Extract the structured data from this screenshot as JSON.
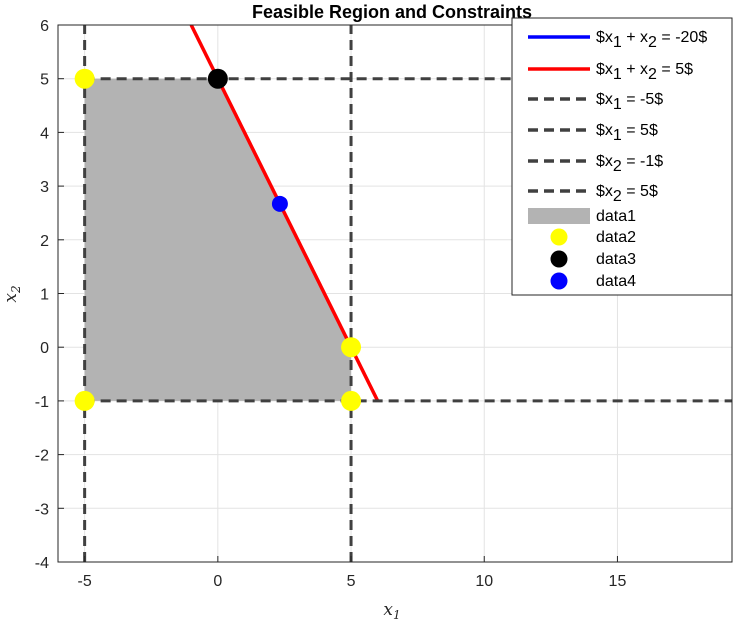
{
  "chart_data": {
    "type": "line",
    "title": "Feasible Region and Constraints",
    "xlabel": "x1",
    "ylabel": "x2",
    "xlim": [
      -6,
      19.3
    ],
    "ylim": [
      -4,
      6
    ],
    "xticks": [
      -5,
      0,
      5,
      10,
      15
    ],
    "yticks": [
      -4,
      -3,
      -2,
      -1,
      0,
      1,
      2,
      3,
      4,
      5,
      6
    ],
    "grid": true,
    "legend_position": "top-right",
    "colors": {
      "blue": "#0000ff",
      "red": "#ff0000",
      "dash": "#404040",
      "fill": "#b3b3b3",
      "yellow": "#ffff00",
      "black": "#000000"
    },
    "lines": [
      {
        "name": "$x_1 + x_2 = -20$",
        "style": "solid",
        "color": "#0000ff",
        "points": []
      },
      {
        "name": "$x_1 + x_2 = 5$",
        "style": "solid",
        "color": "#ff0000",
        "points": [
          [
            -1,
            6
          ],
          [
            6,
            -1
          ]
        ]
      },
      {
        "name": "$x_1 = -5$",
        "style": "dashed",
        "color": "#404040",
        "points": [
          [
            -5,
            -4
          ],
          [
            -5,
            6
          ]
        ]
      },
      {
        "name": "$x_1 = 5$",
        "style": "dashed",
        "color": "#404040",
        "points": [
          [
            5,
            -4
          ],
          [
            5,
            6
          ]
        ]
      },
      {
        "name": "$x_2 = -1$",
        "style": "dashed",
        "color": "#404040",
        "points": [
          [
            -5,
            -1
          ],
          [
            19.3,
            -1
          ]
        ]
      },
      {
        "name": "$x_2 = 5$",
        "style": "dashed",
        "color": "#404040",
        "points": [
          [
            -5,
            5
          ],
          [
            19.3,
            5
          ]
        ]
      }
    ],
    "region": {
      "name": "data1",
      "color": "#b3b3b3",
      "points": [
        [
          -5,
          5
        ],
        [
          0,
          5
        ],
        [
          5,
          0
        ],
        [
          5,
          -1
        ],
        [
          -5,
          -1
        ]
      ]
    },
    "scatter": [
      {
        "name": "data2",
        "color": "#ffff00",
        "points": [
          [
            -5,
            5
          ],
          [
            -5,
            -1
          ],
          [
            5,
            0
          ],
          [
            5,
            -1
          ]
        ]
      },
      {
        "name": "data3",
        "color": "#000000",
        "points": [
          [
            0,
            5
          ]
        ]
      },
      {
        "name": "data4",
        "color": "#0000ff",
        "points": [
          [
            2.33,
            2.67
          ]
        ]
      }
    ],
    "legend": [
      {
        "kind": "line",
        "color": "#0000ff",
        "dash": false,
        "parts": [
          "$x",
          "1",
          " + x",
          "2",
          " = -20$"
        ]
      },
      {
        "kind": "line",
        "color": "#ff0000",
        "dash": false,
        "parts": [
          "$x",
          "1",
          " + x",
          "2",
          " = 5$"
        ]
      },
      {
        "kind": "line",
        "color": "#404040",
        "dash": true,
        "parts": [
          "$x",
          "1",
          " = -5$"
        ]
      },
      {
        "kind": "line",
        "color": "#404040",
        "dash": true,
        "parts": [
          "$x",
          "1",
          " = 5$"
        ]
      },
      {
        "kind": "line",
        "color": "#404040",
        "dash": true,
        "parts": [
          "$x",
          "2",
          " = -1$"
        ]
      },
      {
        "kind": "line",
        "color": "#404040",
        "dash": true,
        "parts": [
          "$x",
          "2",
          " = 5$"
        ]
      },
      {
        "kind": "patch",
        "color": "#b3b3b3",
        "parts": [
          "data1"
        ]
      },
      {
        "kind": "marker",
        "color": "#ffff00",
        "parts": [
          "data2"
        ]
      },
      {
        "kind": "marker",
        "color": "#000000",
        "parts": [
          "data3"
        ]
      },
      {
        "kind": "marker",
        "color": "#0000ff",
        "parts": [
          "data4"
        ]
      }
    ]
  }
}
